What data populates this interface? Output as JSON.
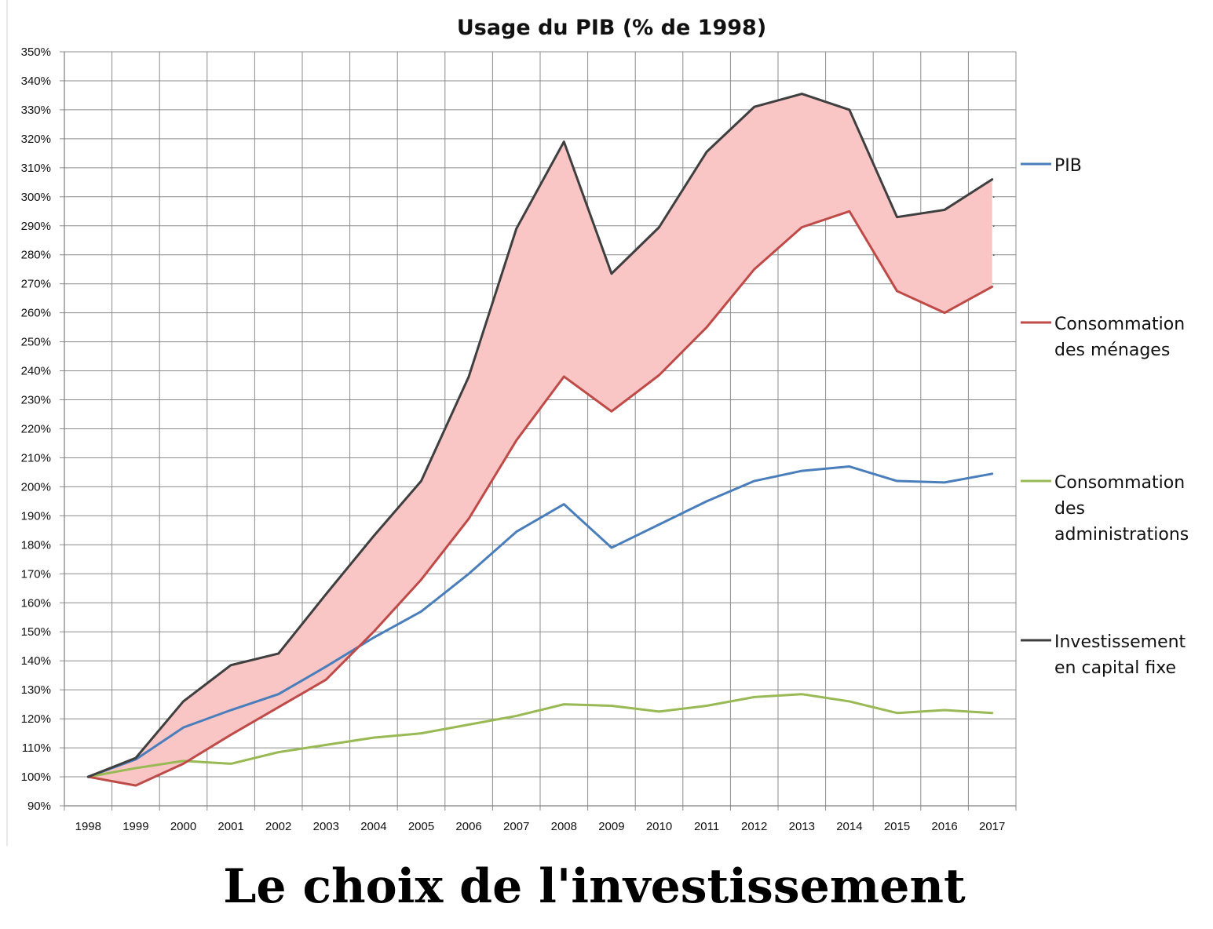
{
  "chart_data": {
    "type": "line",
    "title": "Usage du PIB (% de 1998)",
    "caption": "Le choix de l'investissement",
    "x": [
      "1998",
      "1999",
      "2000",
      "2001",
      "2002",
      "2003",
      "2004",
      "2005",
      "2006",
      "2007",
      "2008",
      "2009",
      "2010",
      "2011",
      "2012",
      "2013",
      "2014",
      "2015",
      "2016",
      "2017"
    ],
    "ylim": [
      90,
      350
    ],
    "ytick_step": 10,
    "y_tick_labels": [
      "90%",
      "100%",
      "110%",
      "120%",
      "130%",
      "140%",
      "150%",
      "160%",
      "170%",
      "180%",
      "190%",
      "200%",
      "210%",
      "220%",
      "230%",
      "240%",
      "250%",
      "260%",
      "270%",
      "280%",
      "290%",
      "300%",
      "310%",
      "320%",
      "330%",
      "340%",
      "350%"
    ],
    "grid": true,
    "legend_position": "right",
    "shaded_band": {
      "between": [
        "Investissement en capital fixe",
        "Consommation des ménages"
      ],
      "color": "#f9c5c5"
    },
    "series": [
      {
        "name": "PIB",
        "legend_lines": [
          "PIB"
        ],
        "color": "#4a7ebb",
        "values": [
          100,
          106,
          117,
          123,
          128.5,
          138,
          148,
          157,
          170,
          184.5,
          194,
          179,
          187,
          195,
          202,
          205.5,
          207,
          202,
          201.5,
          204.5
        ]
      },
      {
        "name": "Consommation des ménages",
        "legend_lines": [
          "Consommation",
          "des ménages"
        ],
        "color": "#be4b48",
        "values": [
          100,
          97,
          104.5,
          114.5,
          124,
          133.5,
          150,
          168,
          189,
          216,
          238,
          226,
          238.5,
          255,
          275,
          289.5,
          295,
          267.5,
          260,
          269
        ]
      },
      {
        "name": "Consommation des administrations",
        "legend_lines": [
          "Consommation",
          "des",
          "administrations"
        ],
        "color": "#98b954",
        "values": [
          100,
          103,
          105.5,
          104.5,
          108.5,
          111,
          113.5,
          115,
          118,
          121,
          125,
          124.5,
          122.5,
          124.5,
          127.5,
          128.5,
          126,
          122,
          123,
          122
        ]
      },
      {
        "name": "Investissement en capital fixe",
        "legend_lines": [
          "Investissement",
          "en capital fixe"
        ],
        "color": "#3f3f3f",
        "values": [
          100,
          106.5,
          126,
          138.5,
          142.5,
          163,
          183,
          202,
          238,
          289,
          319,
          273.5,
          289.5,
          315.5,
          331,
          335.5,
          330,
          293,
          295.5,
          306
        ]
      }
    ]
  }
}
